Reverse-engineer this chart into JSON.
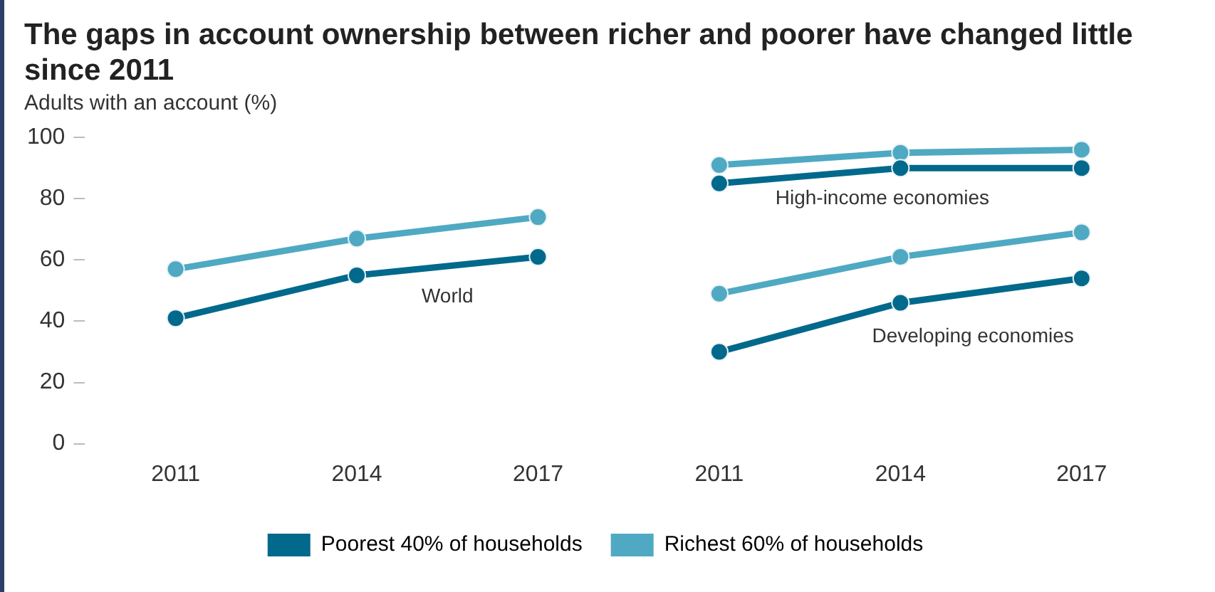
{
  "chart_data": {
    "type": "line",
    "title": "The gaps in account ownership between richer and poorer have changed little since 2011",
    "subtitle": "Adults with an account (%)",
    "categories": [
      "2011",
      "2014",
      "2017",
      "2011",
      "2014",
      "2017"
    ],
    "series": [
      {
        "name": "Poorest 40% of households",
        "color": "#00698c",
        "values": [
          41,
          55,
          61,
          null,
          null,
          null
        ]
      },
      {
        "name": "Richest 60% of households",
        "color": "#4fa9c2",
        "values": [
          57,
          67,
          74,
          null,
          null,
          null
        ]
      },
      {
        "color": "#00698c",
        "values": [
          null,
          null,
          null,
          85,
          90,
          90
        ]
      },
      {
        "color": "#4fa9c2",
        "values": [
          null,
          null,
          null,
          91,
          95,
          96
        ]
      },
      {
        "color": "#00698c",
        "values": [
          null,
          null,
          null,
          30,
          46,
          54
        ]
      },
      {
        "color": "#4fa9c2",
        "values": [
          null,
          null,
          null,
          49,
          61,
          69
        ]
      }
    ],
    "annotations": [
      "World",
      "High-income economies",
      "Developing economies"
    ],
    "ylim": [
      0,
      100
    ],
    "yticks": [
      0,
      20,
      40,
      60,
      80,
      100
    ],
    "grid": false,
    "legend": "bottom",
    "marker": "circle",
    "line_style": "solid"
  }
}
